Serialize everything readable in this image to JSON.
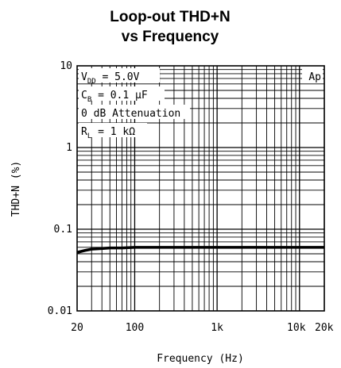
{
  "chart_data": {
    "type": "line",
    "title_line1": "Loop-out THD+N",
    "title_line2": "vs Frequency",
    "xlabel": "Frequency (Hz)",
    "ylabel": "THD+N (%)",
    "x_scale": "log",
    "y_scale": "log",
    "xlim": [
      20,
      20000
    ],
    "ylim": [
      0.01,
      10
    ],
    "grid": true,
    "x_ticks": [
      {
        "value": 20,
        "label": "20"
      },
      {
        "value": 100,
        "label": "100"
      },
      {
        "value": 1000,
        "label": "1k"
      },
      {
        "value": 10000,
        "label": "10k"
      },
      {
        "value": 20000,
        "label": "20k"
      }
    ],
    "y_ticks": [
      {
        "value": 10,
        "label": "10"
      },
      {
        "value": 1,
        "label": "1"
      },
      {
        "value": 0.1,
        "label": "0.1"
      },
      {
        "value": 0.01,
        "label": "0.01"
      }
    ],
    "annotations": {
      "vdd": {
        "main": "V",
        "sub": "DD",
        "rest": " = 5.0V"
      },
      "cb": {
        "main": "C",
        "sub": "B",
        "rest": " = 0.1 μF"
      },
      "atten": "0 dB Attenuation",
      "rl": {
        "main": "R",
        "sub": "L",
        "rest": " = 1 kΩ"
      },
      "brand": "Ap"
    },
    "series": [
      {
        "color": "#000000",
        "x": [
          20,
          25,
          30,
          40,
          50,
          70,
          100,
          150,
          200,
          300,
          500,
          1000,
          2000,
          5000,
          10000,
          20000
        ],
        "y": [
          0.052,
          0.055,
          0.057,
          0.058,
          0.059,
          0.059,
          0.06,
          0.06,
          0.06,
          0.06,
          0.06,
          0.06,
          0.06,
          0.06,
          0.06,
          0.06
        ]
      }
    ]
  }
}
